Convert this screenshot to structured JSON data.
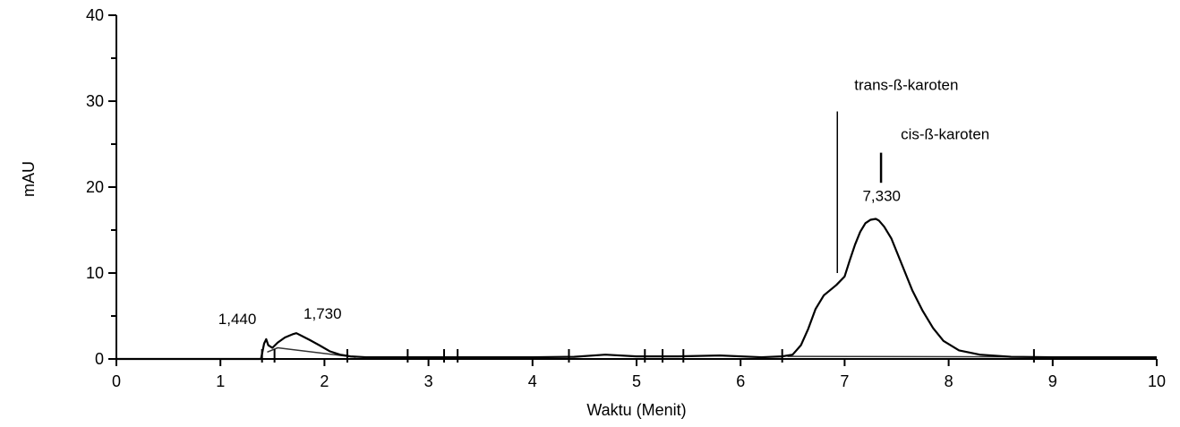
{
  "chart_data": {
    "type": "line",
    "title": "",
    "xlabel": "Waktu (Menit)",
    "ylabel": "mAU",
    "xlim": [
      0,
      10
    ],
    "ylim": [
      0,
      40
    ],
    "x_ticks": [
      "0",
      "1",
      "2",
      "3",
      "4",
      "5",
      "6",
      "7",
      "8",
      "9",
      "10"
    ],
    "y_ticks": [
      "0",
      "10",
      "20",
      "30",
      "40"
    ],
    "grid": false,
    "legend": "none",
    "series": [
      {
        "color": "#000000",
        "x": [
          0,
          1.39,
          1.42,
          1.44,
          1.46,
          1.5,
          1.55,
          1.62,
          1.7,
          1.73,
          1.78,
          1.86,
          1.95,
          2.05,
          2.15,
          2.25,
          2.4,
          2.8,
          3.2,
          3.6,
          4.0,
          4.4,
          4.7,
          5.0,
          5.4,
          5.8,
          6.2,
          6.4,
          6.5,
          6.58,
          6.65,
          6.72,
          6.8,
          6.86,
          6.92,
          7.0,
          7.05,
          7.1,
          7.15,
          7.2,
          7.25,
          7.3,
          7.33,
          7.38,
          7.45,
          7.55,
          7.65,
          7.75,
          7.85,
          7.95,
          8.1,
          8.3,
          8.6,
          9.0,
          10.0
        ],
        "y": [
          0,
          0,
          1.8,
          2.3,
          1.6,
          1.3,
          1.9,
          2.5,
          2.9,
          3.0,
          2.7,
          2.2,
          1.6,
          0.9,
          0.5,
          0.3,
          0.2,
          0.2,
          0.2,
          0.2,
          0.2,
          0.25,
          0.5,
          0.3,
          0.3,
          0.4,
          0.2,
          0.3,
          0.5,
          1.6,
          3.5,
          5.8,
          7.4,
          8.0,
          8.6,
          9.6,
          11.5,
          13.3,
          14.8,
          15.8,
          16.2,
          16.3,
          16.1,
          15.4,
          14.0,
          11.0,
          8.0,
          5.6,
          3.6,
          2.1,
          1.0,
          0.5,
          0.25,
          0.2,
          0.2
        ]
      }
    ],
    "baseline": [
      {
        "x": [
          1.45,
          1.55,
          2.3
        ],
        "y": [
          0.8,
          1.3,
          0.2
        ]
      },
      {
        "x": [
          6.45,
          8.6
        ],
        "y": [
          0.3,
          0.25
        ]
      }
    ],
    "peak_labels": [
      {
        "text": "1,440",
        "x": 1.44,
        "y": 2.3
      },
      {
        "text": "1,730",
        "x": 1.73,
        "y": 3.0
      },
      {
        "text": "7,330",
        "x": 7.33,
        "y": 16.3
      }
    ],
    "annotations": [
      {
        "text": "trans-ß-karoten",
        "x": 6.93,
        "y_top": 28.8,
        "y_bottom": 10.0
      },
      {
        "text": "cis-ß-karoten",
        "x": 7.35,
        "y_top": 24.0,
        "y_bottom": 20.5
      }
    ],
    "event_ticks": [
      1.4,
      1.52,
      2.22,
      2.8,
      3.15,
      3.28,
      4.35,
      5.08,
      5.25,
      5.45,
      6.4,
      8.82
    ]
  }
}
